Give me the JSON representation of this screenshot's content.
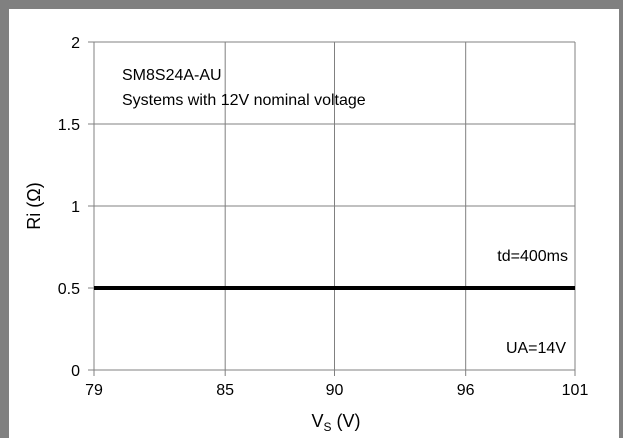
{
  "chart_data": {
    "type": "line",
    "title": "",
    "annotations": {
      "device": "SM8S24A-AU",
      "system": "Systems with 12V nominal voltage",
      "td": "td=400ms",
      "ua": "UA=14V"
    },
    "xlabel": {
      "main": "V",
      "sub": "S",
      "unit": " (V)"
    },
    "ylabel": "Ri (Ω)",
    "x_ticks": [
      79,
      85,
      90,
      96,
      101
    ],
    "y_ticks": [
      0,
      0.5,
      1,
      1.5,
      2
    ],
    "x_tick_labels": [
      "79",
      "85",
      "90",
      "96",
      "101"
    ],
    "y_tick_labels": [
      "0",
      "0.5",
      "1",
      "1.5",
      "2"
    ],
    "xlim": [
      79,
      101
    ],
    "ylim": [
      0,
      2
    ],
    "grid": true,
    "series": [
      {
        "x": [
          79,
          101
        ],
        "y": [
          0.5,
          0.5
        ],
        "color": "#000000"
      }
    ]
  }
}
